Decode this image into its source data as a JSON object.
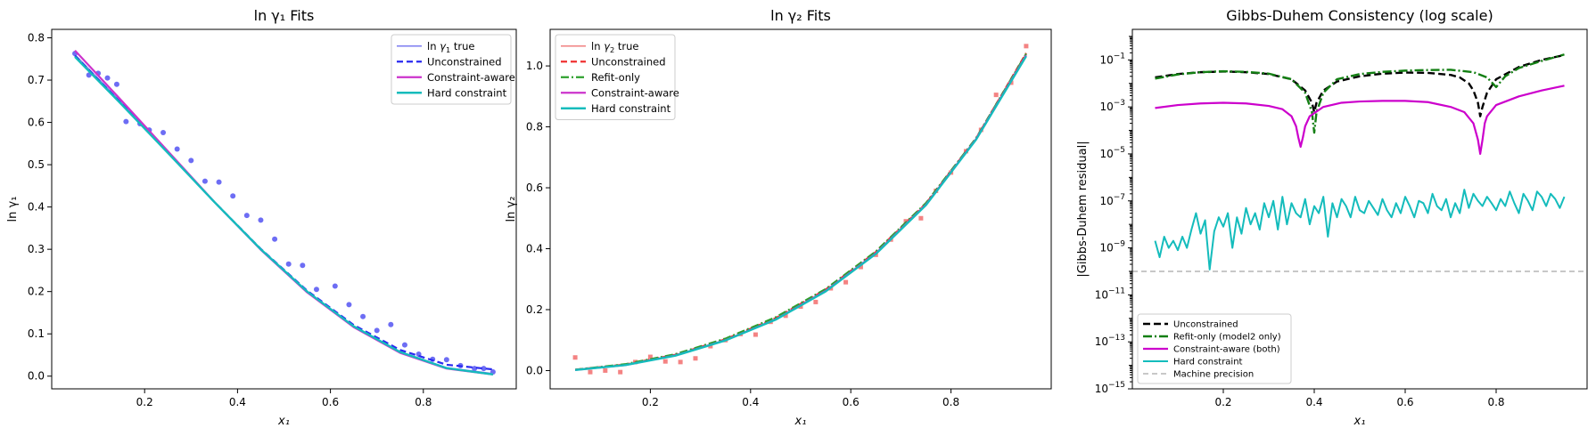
{
  "chart_data": [
    {
      "type": "line",
      "title": "ln γ₁ Fits",
      "xlabel": "x₁",
      "ylabel": "ln γ₁",
      "xlim": [
        0.0,
        1.0
      ],
      "ylim": [
        -0.03,
        0.82
      ],
      "xticks": [
        0.2,
        0.4,
        0.6,
        0.8
      ],
      "xtick_labels": [
        "0.2",
        "0.4",
        "0.6",
        "0.8"
      ],
      "yticks": [
        0.0,
        0.1,
        0.2,
        0.3,
        0.4,
        0.5,
        0.6,
        0.7,
        0.8
      ],
      "ytick_labels": [
        "0.0",
        "0.1",
        "0.2",
        "0.3",
        "0.4",
        "0.5",
        "0.6",
        "0.7",
        "0.8"
      ],
      "grid": false,
      "legend_position": "top-right",
      "scatter": {
        "color": "#3c3cf0",
        "marker": "circle",
        "x": [
          0.05,
          0.08,
          0.1,
          0.12,
          0.14,
          0.16,
          0.19,
          0.21,
          0.24,
          0.27,
          0.3,
          0.33,
          0.36,
          0.39,
          0.42,
          0.45,
          0.48,
          0.51,
          0.54,
          0.57,
          0.61,
          0.64,
          0.67,
          0.7,
          0.73,
          0.76,
          0.79,
          0.82,
          0.85,
          0.88,
          0.91,
          0.93,
          0.95
        ],
        "y": [
          0.763,
          0.712,
          0.716,
          0.705,
          0.69,
          0.602,
          0.597,
          0.582,
          0.576,
          0.537,
          0.51,
          0.461,
          0.459,
          0.426,
          0.38,
          0.369,
          0.324,
          0.265,
          0.262,
          0.205,
          0.213,
          0.169,
          0.141,
          0.108,
          0.122,
          0.074,
          0.052,
          0.04,
          0.039,
          0.025,
          0.018,
          0.018,
          0.01
        ]
      },
      "series": [
        {
          "name": "ln γ₁ true",
          "label_prefix": "ln ",
          "label_symbol": "γ",
          "label_sub": "1",
          "label_suffix": " true",
          "color": "#7b7bf0",
          "width": 1.5,
          "dash": "",
          "x": [
            0.05,
            0.15,
            0.25,
            0.35,
            0.45,
            0.55,
            0.65,
            0.75,
            0.85,
            0.95
          ],
          "y": [
            0.76,
            0.647,
            0.53,
            0.412,
            0.3,
            0.2,
            0.118,
            0.058,
            0.02,
            0.006
          ]
        },
        {
          "name": "Unconstrained",
          "color": "#2a2af0",
          "width": 2.2,
          "dash": "7,4",
          "x": [
            0.05,
            0.15,
            0.25,
            0.35,
            0.45,
            0.55,
            0.65,
            0.75,
            0.85,
            0.95
          ],
          "y": [
            0.758,
            0.645,
            0.529,
            0.412,
            0.301,
            0.202,
            0.121,
            0.062,
            0.027,
            0.016
          ]
        },
        {
          "name": "Constraint-aware",
          "color": "#cc33cc",
          "width": 2.2,
          "dash": "",
          "x": [
            0.05,
            0.15,
            0.25,
            0.35,
            0.45,
            0.55,
            0.65,
            0.75,
            0.85,
            0.95
          ],
          "y": [
            0.77,
            0.652,
            0.532,
            0.412,
            0.299,
            0.198,
            0.116,
            0.055,
            0.018,
            0.004
          ]
        },
        {
          "name": "Hard constraint",
          "color": "#14bcbc",
          "width": 2.4,
          "dash": "",
          "x": [
            0.05,
            0.15,
            0.25,
            0.35,
            0.45,
            0.55,
            0.65,
            0.75,
            0.85,
            0.95
          ],
          "y": [
            0.755,
            0.643,
            0.528,
            0.412,
            0.3,
            0.2,
            0.118,
            0.057,
            0.019,
            0.004
          ]
        }
      ]
    },
    {
      "type": "line",
      "title": "ln γ₂ Fits",
      "xlabel": "x₁",
      "ylabel": "ln γ₂",
      "xlim": [
        0.0,
        1.0
      ],
      "ylim": [
        -0.06,
        1.12
      ],
      "xticks": [
        0.2,
        0.4,
        0.6,
        0.8
      ],
      "xtick_labels": [
        "0.2",
        "0.4",
        "0.6",
        "0.8"
      ],
      "yticks": [
        0.0,
        0.2,
        0.4,
        0.6,
        0.8,
        1.0
      ],
      "ytick_labels": [
        "0.0",
        "0.2",
        "0.4",
        "0.6",
        "0.8",
        "1.0"
      ],
      "grid": false,
      "legend_position": "top-left",
      "scatter": {
        "color": "#f05a5a",
        "marker": "square",
        "x": [
          0.05,
          0.08,
          0.11,
          0.14,
          0.17,
          0.2,
          0.23,
          0.26,
          0.29,
          0.32,
          0.35,
          0.38,
          0.41,
          0.44,
          0.47,
          0.5,
          0.53,
          0.56,
          0.59,
          0.62,
          0.65,
          0.68,
          0.71,
          0.74,
          0.77,
          0.8,
          0.83,
          0.86,
          0.89,
          0.92,
          0.95
        ],
        "y": [
          0.043,
          -0.005,
          0.0,
          -0.005,
          0.028,
          0.045,
          0.03,
          0.028,
          0.04,
          0.08,
          0.1,
          0.12,
          0.118,
          0.16,
          0.18,
          0.21,
          0.225,
          0.27,
          0.29,
          0.34,
          0.38,
          0.43,
          0.49,
          0.5,
          0.59,
          0.65,
          0.72,
          0.79,
          0.905,
          0.945,
          1.065
        ]
      },
      "series": [
        {
          "name": "ln γ₂ true",
          "label_prefix": "ln ",
          "label_symbol": "γ",
          "label_sub": "2",
          "label_suffix": " true",
          "color": "#f08080",
          "width": 1.5,
          "dash": "",
          "x": [
            0.05,
            0.15,
            0.25,
            0.35,
            0.45,
            0.55,
            0.65,
            0.75,
            0.85,
            0.95
          ],
          "y": [
            0.002,
            0.018,
            0.05,
            0.1,
            0.168,
            0.262,
            0.385,
            0.545,
            0.76,
            1.04
          ]
        },
        {
          "name": "Unconstrained",
          "color": "#f03030",
          "width": 2.2,
          "dash": "7,4",
          "x": [
            0.05,
            0.15,
            0.25,
            0.35,
            0.45,
            0.55,
            0.65,
            0.75,
            0.85,
            0.95
          ],
          "y": [
            0.003,
            0.02,
            0.052,
            0.103,
            0.172,
            0.266,
            0.389,
            0.548,
            0.762,
            1.042
          ]
        },
        {
          "name": "Refit-only",
          "color": "#2ca02c",
          "width": 2.2,
          "dash": "9,3,2,3",
          "x": [
            0.05,
            0.15,
            0.25,
            0.35,
            0.45,
            0.55,
            0.65,
            0.75,
            0.85,
            0.95
          ],
          "y": [
            0.003,
            0.021,
            0.054,
            0.105,
            0.175,
            0.268,
            0.391,
            0.55,
            0.763,
            1.04
          ]
        },
        {
          "name": "Constraint-aware",
          "color": "#cc33cc",
          "width": 2.2,
          "dash": "",
          "x": [
            0.05,
            0.15,
            0.25,
            0.35,
            0.45,
            0.55,
            0.65,
            0.75,
            0.85,
            0.95
          ],
          "y": [
            0.002,
            0.018,
            0.05,
            0.1,
            0.168,
            0.262,
            0.385,
            0.545,
            0.76,
            1.035
          ]
        },
        {
          "name": "Hard constraint",
          "color": "#14bcbc",
          "width": 2.4,
          "dash": "",
          "x": [
            0.05,
            0.15,
            0.25,
            0.35,
            0.45,
            0.55,
            0.65,
            0.75,
            0.85,
            0.95
          ],
          "y": [
            0.002,
            0.018,
            0.049,
            0.099,
            0.167,
            0.26,
            0.383,
            0.543,
            0.758,
            1.032
          ]
        }
      ]
    },
    {
      "type": "line",
      "title": "Gibbs-Duhem Consistency (log scale)",
      "xlabel": "x₁",
      "ylabel": "|Gibbs-Duhem residual|",
      "y_scale": "log",
      "xlim": [
        0.0,
        1.0
      ],
      "ylim_log10": [
        -15,
        0.3
      ],
      "xticks": [
        0.2,
        0.4,
        0.6,
        0.8
      ],
      "xtick_labels": [
        "0.2",
        "0.4",
        "0.6",
        "0.8"
      ],
      "ytick_exponents": [
        -1,
        -3,
        -5,
        -7,
        -9,
        -11,
        -13,
        -15
      ],
      "ytick_base": "10",
      "grid": false,
      "legend_position": "bottom-left",
      "hlines": [
        {
          "name": "Machine precision",
          "color": "#b5b5b5",
          "dash": "6,4",
          "value": 1e-10
        }
      ],
      "series": [
        {
          "name": "Unconstrained",
          "color": "#000000",
          "width": 2.4,
          "dash": "8,4",
          "x": [
            0.05,
            0.1,
            0.15,
            0.2,
            0.25,
            0.3,
            0.35,
            0.38,
            0.395,
            0.4,
            0.405,
            0.42,
            0.45,
            0.5,
            0.55,
            0.6,
            0.65,
            0.7,
            0.72,
            0.74,
            0.75,
            0.76,
            0.765,
            0.77,
            0.78,
            0.8,
            0.85,
            0.9,
            0.95
          ],
          "y": [
            0.018,
            0.025,
            0.03,
            0.032,
            0.03,
            0.025,
            0.015,
            0.005,
            0.0015,
            0.0006,
            0.0015,
            0.005,
            0.012,
            0.02,
            0.026,
            0.029,
            0.028,
            0.023,
            0.018,
            0.01,
            0.005,
            0.0015,
            0.0004,
            0.001,
            0.004,
            0.015,
            0.05,
            0.1,
            0.16
          ]
        },
        {
          "name": "Refit-only (model2 only)",
          "color": "#137f13",
          "width": 2.4,
          "dash": "10,3,2,3",
          "x": [
            0.05,
            0.1,
            0.15,
            0.2,
            0.25,
            0.3,
            0.35,
            0.38,
            0.395,
            0.4,
            0.405,
            0.42,
            0.45,
            0.5,
            0.55,
            0.6,
            0.65,
            0.7,
            0.75,
            0.78,
            0.8,
            0.82,
            0.85,
            0.9,
            0.95
          ],
          "y": [
            0.016,
            0.024,
            0.03,
            0.033,
            0.031,
            0.026,
            0.015,
            0.004,
            0.0006,
            8e-05,
            0.0006,
            0.004,
            0.015,
            0.025,
            0.031,
            0.035,
            0.037,
            0.038,
            0.03,
            0.018,
            0.007,
            0.02,
            0.045,
            0.09,
            0.17
          ]
        },
        {
          "name": "Constraint-aware (both)",
          "color": "#cc00cc",
          "width": 2.2,
          "dash": "",
          "x": [
            0.05,
            0.1,
            0.15,
            0.2,
            0.25,
            0.3,
            0.33,
            0.35,
            0.36,
            0.365,
            0.37,
            0.375,
            0.38,
            0.39,
            0.42,
            0.46,
            0.5,
            0.55,
            0.6,
            0.65,
            0.7,
            0.73,
            0.75,
            0.76,
            0.765,
            0.77,
            0.775,
            0.78,
            0.8,
            0.85,
            0.9,
            0.95
          ],
          "y": [
            0.0009,
            0.0012,
            0.0014,
            0.0015,
            0.0014,
            0.0011,
            0.0008,
            0.0004,
            0.00015,
            5e-05,
            2e-05,
            5e-05,
            0.00015,
            0.0004,
            0.001,
            0.0015,
            0.0017,
            0.0018,
            0.0018,
            0.0016,
            0.001,
            0.0006,
            0.0002,
            4e-05,
            1e-05,
            4e-05,
            0.0002,
            0.0004,
            0.0012,
            0.0028,
            0.005,
            0.008
          ]
        },
        {
          "name": "Hard constraint",
          "color": "#14bcbc",
          "width": 2.0,
          "dash": "",
          "x": [
            0.05,
            0.06,
            0.07,
            0.08,
            0.09,
            0.1,
            0.11,
            0.12,
            0.13,
            0.14,
            0.15,
            0.16,
            0.17,
            0.18,
            0.19,
            0.2,
            0.21,
            0.22,
            0.23,
            0.24,
            0.25,
            0.26,
            0.27,
            0.28,
            0.29,
            0.3,
            0.31,
            0.32,
            0.33,
            0.34,
            0.35,
            0.36,
            0.37,
            0.38,
            0.39,
            0.4,
            0.41,
            0.42,
            0.43,
            0.44,
            0.45,
            0.46,
            0.47,
            0.48,
            0.49,
            0.5,
            0.51,
            0.52,
            0.53,
            0.54,
            0.55,
            0.56,
            0.57,
            0.58,
            0.59,
            0.6,
            0.61,
            0.62,
            0.63,
            0.64,
            0.65,
            0.66,
            0.67,
            0.68,
            0.69,
            0.7,
            0.71,
            0.72,
            0.73,
            0.74,
            0.75,
            0.76,
            0.77,
            0.78,
            0.79,
            0.8,
            0.81,
            0.82,
            0.83,
            0.84,
            0.85,
            0.86,
            0.87,
            0.88,
            0.89,
            0.9,
            0.91,
            0.92,
            0.93,
            0.94,
            0.95
          ],
          "y": [
            2e-09,
            4e-10,
            3e-09,
            1e-09,
            2e-09,
            8e-10,
            3e-09,
            1e-09,
            6e-09,
            3e-08,
            4e-09,
            1.5e-08,
            1.2e-10,
            5e-09,
            2e-08,
            8e-09,
            3e-08,
            1e-09,
            2e-08,
            4e-09,
            5e-08,
            1e-08,
            3e-08,
            6e-09,
            8e-08,
            2e-08,
            1e-07,
            6e-09,
            1.5e-07,
            1e-08,
            8e-08,
            3e-08,
            2e-08,
            1.2e-07,
            1e-08,
            6e-08,
            3e-08,
            1.5e-07,
            3e-09,
            8e-08,
            2e-08,
            1.2e-07,
            6e-08,
            2e-08,
            1.5e-07,
            4e-08,
            3e-08,
            1e-07,
            5e-08,
            2.5e-08,
            1.2e-07,
            4e-08,
            2e-08,
            8e-08,
            3e-08,
            1.5e-07,
            6e-08,
            2e-08,
            1e-07,
            8e-08,
            3e-08,
            2e-07,
            6e-08,
            4e-08,
            1.2e-07,
            2e-08,
            8e-08,
            3e-08,
            3e-07,
            5e-08,
            2e-07,
            1e-07,
            6e-08,
            1.5e-07,
            8e-08,
            4e-08,
            1.2e-07,
            6e-08,
            2.5e-07,
            8e-08,
            3e-08,
            2e-07,
            1e-07,
            4e-08,
            2.5e-07,
            1.5e-07,
            6e-08,
            2e-07,
            1.2e-07,
            5e-08,
            1.5e-07
          ]
        }
      ],
      "legend_names": [
        "Unconstrained",
        "Refit-only (model2 only)",
        "Constraint-aware (both)",
        "Hard constraint",
        "Machine precision"
      ]
    }
  ]
}
